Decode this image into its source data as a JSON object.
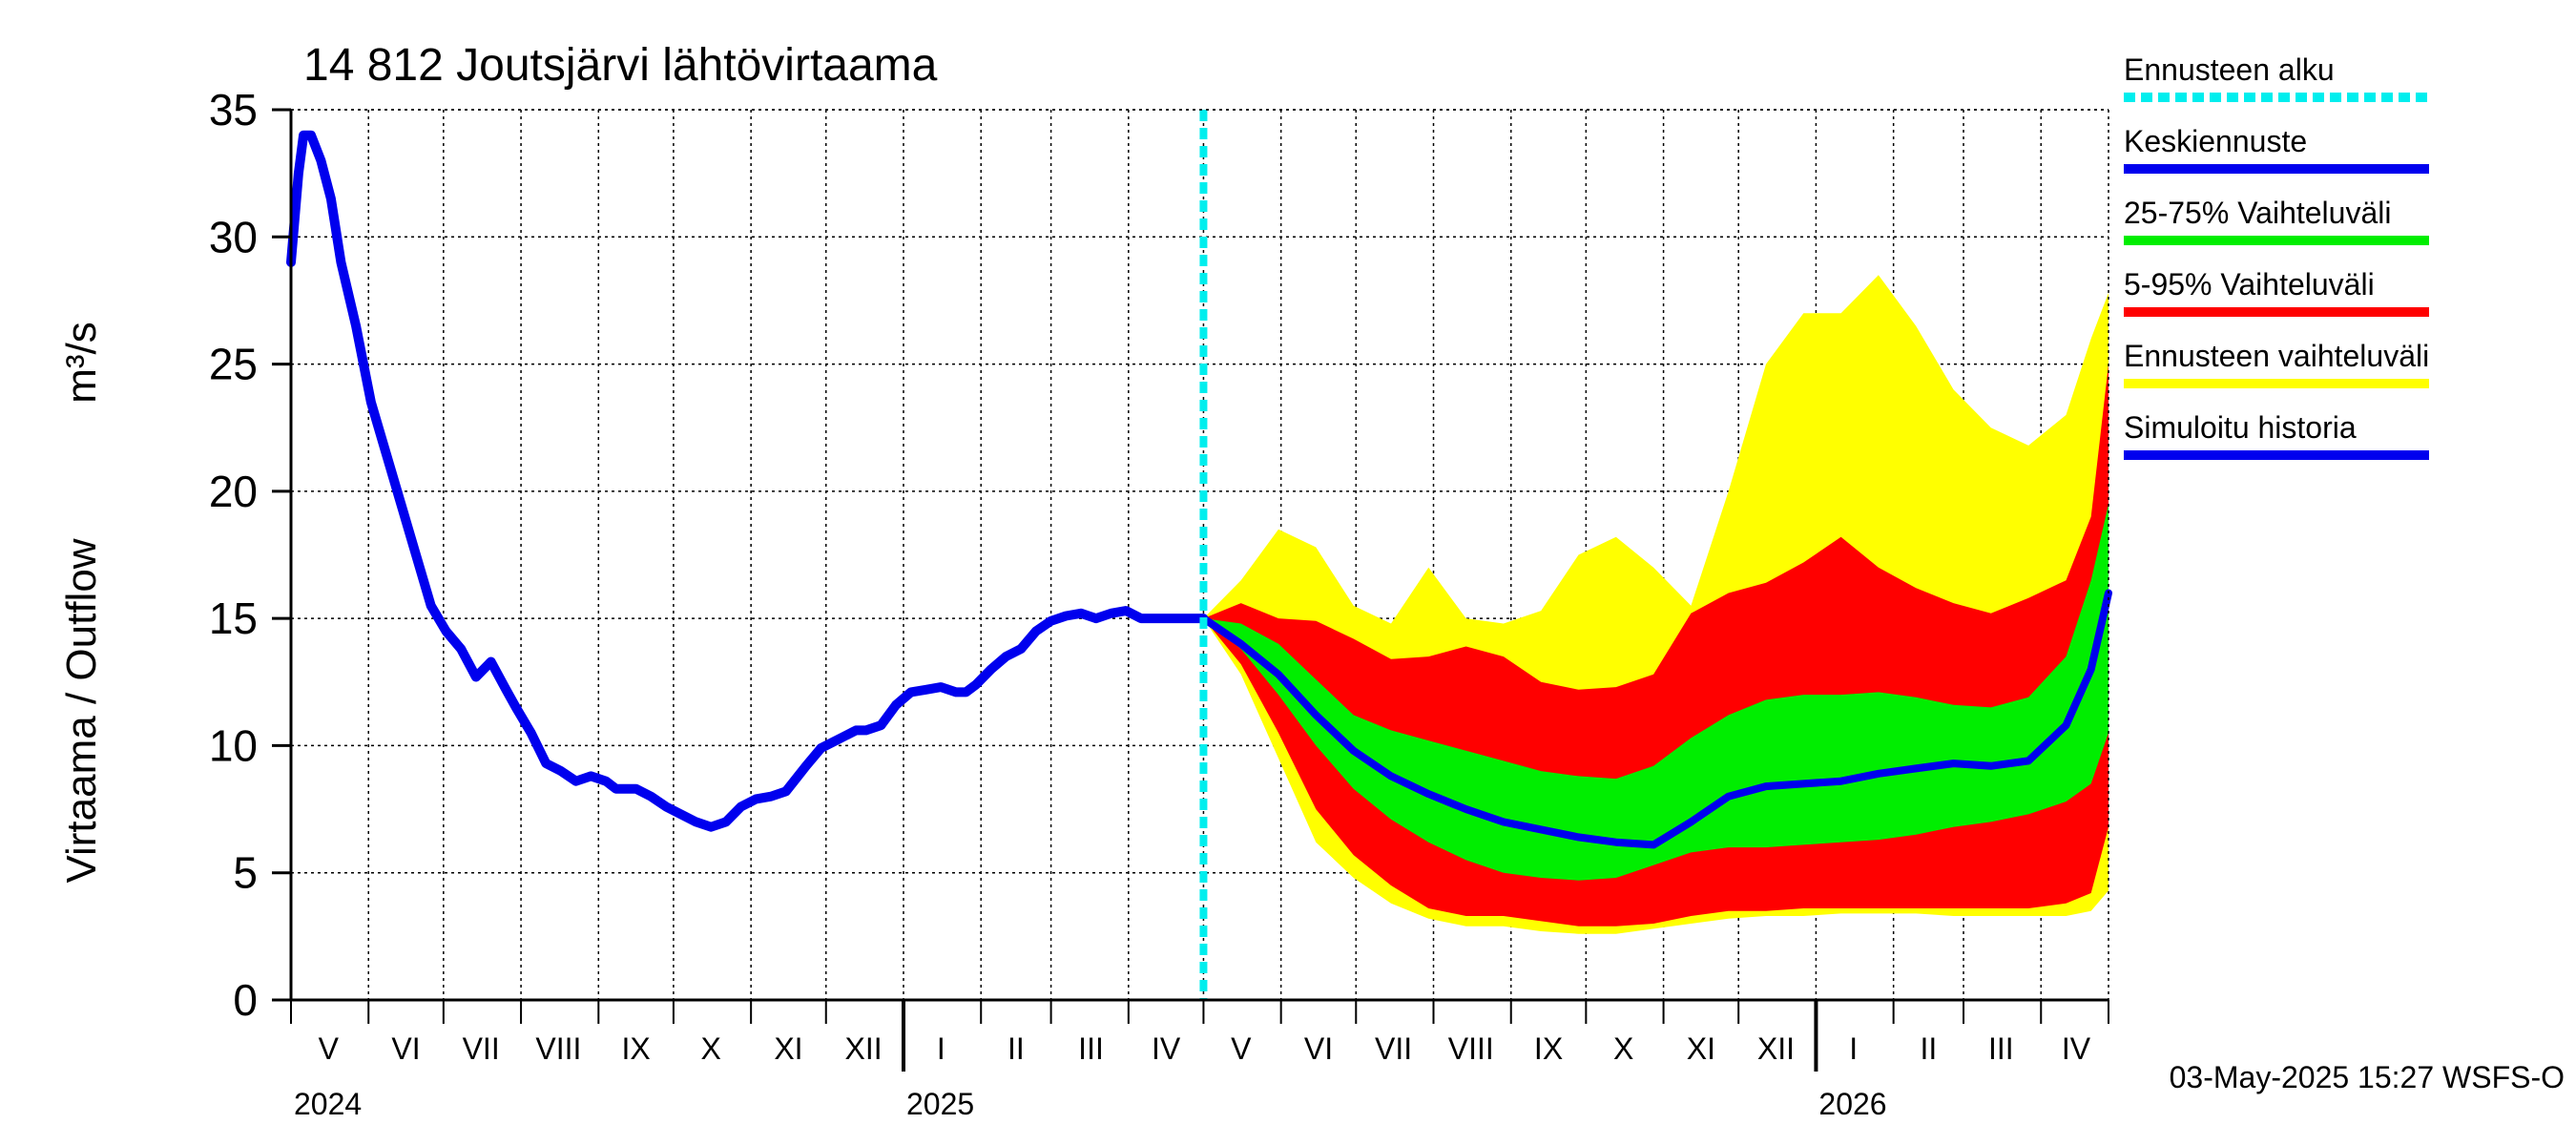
{
  "chart_data": {
    "type": "area",
    "title": "14 812 Joutsjärvi lähtövirtaama",
    "ylabel_fi": "Virtaama / Outflow",
    "ylabel_unit": "m³/s",
    "ylim": [
      0,
      35
    ],
    "yticks": [
      0,
      5,
      10,
      15,
      20,
      25,
      30,
      35
    ],
    "xlim_days": [
      0,
      727
    ],
    "forecast_start_day": 365,
    "month_labels": [
      {
        "label": "V",
        "day": 15
      },
      {
        "label": "VI",
        "day": 46
      },
      {
        "label": "VII",
        "day": 76
      },
      {
        "label": "VIII",
        "day": 107
      },
      {
        "label": "IX",
        "day": 138
      },
      {
        "label": "X",
        "day": 168
      },
      {
        "label": "XI",
        "day": 199
      },
      {
        "label": "XII",
        "day": 229
      },
      {
        "label": "I",
        "day": 260
      },
      {
        "label": "II",
        "day": 290
      },
      {
        "label": "III",
        "day": 320
      },
      {
        "label": "IV",
        "day": 350
      },
      {
        "label": "V",
        "day": 380
      },
      {
        "label": "VI",
        "day": 411
      },
      {
        "label": "VII",
        "day": 441
      },
      {
        "label": "VIII",
        "day": 472
      },
      {
        "label": "IX",
        "day": 503
      },
      {
        "label": "X",
        "day": 533
      },
      {
        "label": "XI",
        "day": 564
      },
      {
        "label": "XII",
        "day": 594
      },
      {
        "label": "I",
        "day": 625
      },
      {
        "label": "II",
        "day": 655
      },
      {
        "label": "III",
        "day": 684
      },
      {
        "label": "IV",
        "day": 714
      }
    ],
    "month_boundaries_days": [
      0,
      31,
      61,
      92,
      123,
      153,
      184,
      214,
      245,
      276,
      304,
      335,
      365,
      396,
      426,
      457,
      488,
      518,
      549,
      579,
      610,
      641,
      669,
      700,
      727
    ],
    "year_boundaries_days": [
      245,
      610
    ],
    "year_labels": [
      {
        "label": "2024",
        "day": 0
      },
      {
        "label": "2025",
        "day": 245
      },
      {
        "label": "2026",
        "day": 610
      }
    ],
    "series": [
      {
        "name": "Simuloitu historia",
        "color": "#0000ee",
        "x": [
          0,
          3,
          5,
          8,
          12,
          16,
          20,
          26,
          32,
          38,
          44,
          50,
          56,
          62,
          68,
          74,
          80,
          86,
          90,
          96,
          102,
          108,
          114,
          120,
          126,
          130,
          134,
          138,
          144,
          150,
          156,
          162,
          168,
          174,
          180,
          186,
          192,
          198,
          202,
          206,
          212,
          220,
          226,
          230,
          236,
          242,
          248,
          254,
          260,
          266,
          270,
          274,
          280,
          286,
          292,
          298,
          304,
          310,
          316,
          322,
          328,
          334,
          340,
          346,
          352,
          358,
          362,
          365
        ],
        "values": [
          29,
          32.5,
          34,
          34,
          33,
          31.5,
          29,
          26.5,
          23.5,
          21.5,
          19.5,
          17.5,
          15.5,
          14.5,
          13.8,
          12.7,
          13.3,
          12.2,
          11.5,
          10.5,
          9.3,
          9.0,
          8.6,
          8.8,
          8.6,
          8.3,
          8.3,
          8.3,
          8.0,
          7.6,
          7.3,
          7.0,
          6.8,
          7.0,
          7.6,
          7.9,
          8.0,
          8.2,
          8.7,
          9.2,
          9.9,
          10.3,
          10.6,
          10.6,
          10.8,
          11.6,
          12.1,
          12.2,
          12.3,
          12.1,
          12.1,
          12.4,
          13.0,
          13.5,
          13.8,
          14.5,
          14.9,
          15.1,
          15.2,
          15.0,
          15.2,
          15.3,
          15.0,
          15.0,
          15.0,
          15.0,
          15.0,
          15.0
        ]
      },
      {
        "name": "Keskiennuste",
        "color": "#0000ee",
        "x": [
          365,
          380,
          395,
          410,
          425,
          440,
          455,
          470,
          485,
          500,
          515,
          530,
          545,
          560,
          575,
          590,
          605,
          620,
          635,
          650,
          665,
          680,
          695,
          710,
          720,
          727
        ],
        "values": [
          15,
          14.0,
          12.8,
          11.2,
          9.8,
          8.8,
          8.1,
          7.5,
          7.0,
          6.7,
          6.4,
          6.2,
          6.1,
          7.0,
          8.0,
          8.4,
          8.5,
          8.6,
          8.9,
          9.1,
          9.3,
          9.2,
          9.4,
          10.8,
          13.0,
          16.0
        ]
      },
      {
        "name": "25-75% Vaihteluväli",
        "color": "#00ee00",
        "x": [
          365,
          380,
          395,
          410,
          425,
          440,
          455,
          470,
          485,
          500,
          515,
          530,
          545,
          560,
          575,
          590,
          605,
          620,
          635,
          650,
          665,
          680,
          695,
          710,
          720,
          727
        ],
        "upper": [
          15,
          14.8,
          14.0,
          12.6,
          11.2,
          10.6,
          10.2,
          9.8,
          9.4,
          9.0,
          8.8,
          8.7,
          9.2,
          10.3,
          11.2,
          11.8,
          12.0,
          12.0,
          12.1,
          11.9,
          11.6,
          11.5,
          11.9,
          13.5,
          16.5,
          19.5
        ],
        "lower": [
          15,
          13.8,
          12.0,
          10.0,
          8.3,
          7.1,
          6.2,
          5.5,
          5.0,
          4.8,
          4.7,
          4.8,
          5.3,
          5.8,
          6.0,
          6.0,
          6.1,
          6.2,
          6.3,
          6.5,
          6.8,
          7.0,
          7.3,
          7.8,
          8.5,
          10.5
        ]
      },
      {
        "name": "5-95% Vaihteluväli",
        "color": "#ff0000",
        "x": [
          365,
          380,
          395,
          410,
          425,
          440,
          455,
          470,
          485,
          500,
          515,
          530,
          545,
          560,
          575,
          590,
          605,
          620,
          635,
          650,
          665,
          680,
          695,
          710,
          720,
          727
        ],
        "upper": [
          15,
          15.6,
          15.0,
          14.9,
          14.2,
          13.4,
          13.5,
          13.9,
          13.5,
          12.5,
          12.2,
          12.3,
          12.8,
          15.2,
          16.0,
          16.4,
          17.2,
          18.2,
          17.0,
          16.2,
          15.6,
          15.2,
          15.8,
          16.5,
          19.0,
          25.0
        ],
        "lower": [
          15,
          13.2,
          10.5,
          7.5,
          5.7,
          4.5,
          3.6,
          3.3,
          3.3,
          3.1,
          2.9,
          2.9,
          3.0,
          3.3,
          3.5,
          3.5,
          3.6,
          3.6,
          3.6,
          3.6,
          3.6,
          3.6,
          3.6,
          3.8,
          4.2,
          6.8
        ]
      },
      {
        "name": "Ennusteen vaihteluväli",
        "color": "#ffff00",
        "x": [
          365,
          380,
          395,
          410,
          425,
          440,
          455,
          470,
          485,
          500,
          515,
          530,
          545,
          560,
          575,
          590,
          605,
          620,
          635,
          650,
          665,
          680,
          695,
          710,
          720,
          727
        ],
        "upper": [
          15,
          16.5,
          18.5,
          17.8,
          15.5,
          14.8,
          17.0,
          15.0,
          14.8,
          15.3,
          17.5,
          18.2,
          17.0,
          15.5,
          20.0,
          25.0,
          27.0,
          27.0,
          28.5,
          26.5,
          24.0,
          22.5,
          21.8,
          23.0,
          26.0,
          27.8
        ],
        "lower": [
          15,
          12.8,
          9.5,
          6.2,
          4.8,
          3.8,
          3.2,
          2.9,
          2.9,
          2.7,
          2.6,
          2.6,
          2.8,
          3.0,
          3.2,
          3.3,
          3.3,
          3.4,
          3.4,
          3.4,
          3.3,
          3.3,
          3.3,
          3.3,
          3.5,
          4.3
        ]
      }
    ],
    "legend": [
      {
        "label": "Ennusteen alku",
        "color": "#00eeee",
        "style": "dashed"
      },
      {
        "label": "Keskiennuste",
        "color": "#0000ee",
        "style": "solid"
      },
      {
        "label": "25-75% Vaihteluväli",
        "color": "#00ee00",
        "style": "solid"
      },
      {
        "label": "5-95% Vaihteluväli",
        "color": "#ff0000",
        "style": "solid"
      },
      {
        "label": "Ennusteen vaihteluväli",
        "color": "#ffff00",
        "style": "solid"
      },
      {
        "label": "Simuloitu historia",
        "color": "#0000ee",
        "style": "solid"
      }
    ],
    "footer": "03-May-2025 15:27 WSFS-O"
  }
}
